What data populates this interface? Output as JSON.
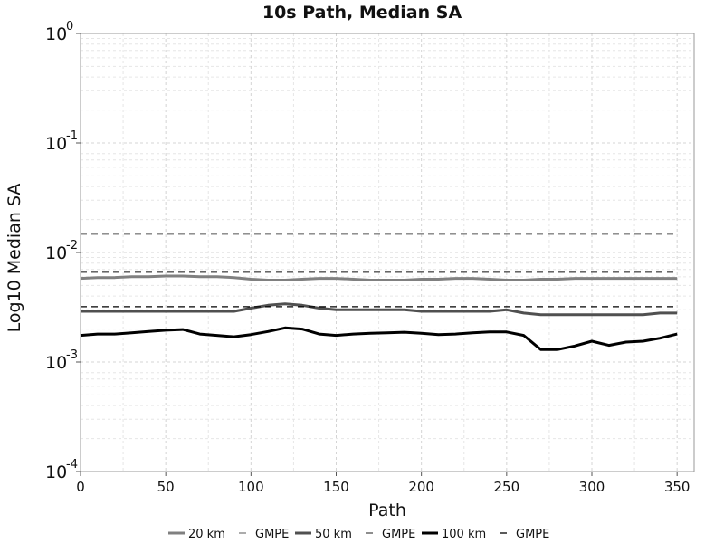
{
  "chart_data": {
    "type": "line",
    "title": "10s Path, Median SA",
    "xlabel": "Path",
    "ylabel": "Log10 Median SA",
    "xlim": [
      0,
      360
    ],
    "ylim": [
      0.0001,
      1
    ],
    "yscale": "log",
    "grid": true,
    "legend_position": "bottom",
    "x_ticks": [
      "0",
      "50",
      "100",
      "150",
      "200",
      "250",
      "300",
      "350"
    ],
    "y_ticks": [
      {
        "base": "10",
        "exp": "-4",
        "value": 0.0001
      },
      {
        "base": "10",
        "exp": "-3",
        "value": 0.001
      },
      {
        "base": "10",
        "exp": "-2",
        "value": 0.01
      },
      {
        "base": "10",
        "exp": "-1",
        "value": 0.1
      },
      {
        "base": "10",
        "exp": "0",
        "value": 1
      }
    ],
    "x": [
      0,
      10,
      20,
      30,
      40,
      50,
      60,
      70,
      80,
      90,
      100,
      110,
      120,
      130,
      140,
      150,
      160,
      170,
      180,
      190,
      200,
      210,
      220,
      230,
      240,
      250,
      260,
      270,
      280,
      290,
      300,
      310,
      320,
      330,
      340,
      350
    ],
    "series": [
      {
        "name": "20 km",
        "color": "#808080",
        "style": "solid",
        "width": 3,
        "values": [
          0.0058,
          0.0059,
          0.0059,
          0.006,
          0.006,
          0.0061,
          0.0061,
          0.006,
          0.006,
          0.0059,
          0.0057,
          0.0056,
          0.0056,
          0.0057,
          0.0058,
          0.0058,
          0.0057,
          0.0056,
          0.0056,
          0.0056,
          0.0057,
          0.0057,
          0.0058,
          0.0058,
          0.0057,
          0.0056,
          0.0056,
          0.0057,
          0.0057,
          0.0058,
          0.0058,
          0.0058,
          0.0058,
          0.0058,
          0.0058,
          0.0058
        ]
      },
      {
        "name": "GMPE",
        "color": "#808080",
        "style": "dashed",
        "width": 1.3,
        "values": [
          0.0147,
          0.0147,
          0.0147,
          0.0147,
          0.0147,
          0.0147,
          0.0147,
          0.0147,
          0.0147,
          0.0147,
          0.0147,
          0.0147,
          0.0147,
          0.0147,
          0.0147,
          0.0147,
          0.0147,
          0.0147,
          0.0147,
          0.0147,
          0.0147,
          0.0147,
          0.0147,
          0.0147,
          0.0147,
          0.0147,
          0.0147,
          0.0147,
          0.0147,
          0.0147,
          0.0147,
          0.0147,
          0.0147,
          0.0147,
          0.0147,
          0.0147
        ]
      },
      {
        "name": "50 km",
        "color": "#505050",
        "style": "solid",
        "width": 3,
        "values": [
          0.0029,
          0.0029,
          0.0029,
          0.0029,
          0.0029,
          0.0029,
          0.0029,
          0.0029,
          0.0029,
          0.0029,
          0.0031,
          0.0033,
          0.0034,
          0.0033,
          0.0031,
          0.003,
          0.003,
          0.003,
          0.003,
          0.003,
          0.0029,
          0.0029,
          0.0029,
          0.0029,
          0.0029,
          0.003,
          0.0028,
          0.0027,
          0.0027,
          0.0027,
          0.0027,
          0.0027,
          0.0027,
          0.0027,
          0.0028,
          0.0028
        ]
      },
      {
        "name": "GMPE",
        "color": "#505050",
        "style": "dashed",
        "width": 1.3,
        "values": [
          0.0066,
          0.0066,
          0.0066,
          0.0066,
          0.0066,
          0.0066,
          0.0066,
          0.0066,
          0.0066,
          0.0066,
          0.0066,
          0.0066,
          0.0066,
          0.0066,
          0.0066,
          0.0066,
          0.0066,
          0.0066,
          0.0066,
          0.0066,
          0.0066,
          0.0066,
          0.0066,
          0.0066,
          0.0066,
          0.0066,
          0.0066,
          0.0066,
          0.0066,
          0.0066,
          0.0066,
          0.0066,
          0.0066,
          0.0066,
          0.0066,
          0.0066
        ]
      },
      {
        "name": "100 km",
        "color": "#000000",
        "style": "solid",
        "width": 3,
        "values": [
          0.00175,
          0.0018,
          0.0018,
          0.00185,
          0.0019,
          0.00195,
          0.00198,
          0.0018,
          0.00175,
          0.0017,
          0.00178,
          0.0019,
          0.00205,
          0.002,
          0.0018,
          0.00175,
          0.0018,
          0.00183,
          0.00185,
          0.00187,
          0.00183,
          0.00178,
          0.0018,
          0.00185,
          0.00188,
          0.00188,
          0.00175,
          0.0013,
          0.0013,
          0.0014,
          0.00155,
          0.00142,
          0.00152,
          0.00155,
          0.00165,
          0.0018
        ]
      },
      {
        "name": "GMPE",
        "color": "#000000",
        "style": "dashed",
        "width": 1.3,
        "values": [
          0.0032,
          0.0032,
          0.0032,
          0.0032,
          0.0032,
          0.0032,
          0.0032,
          0.0032,
          0.0032,
          0.0032,
          0.0032,
          0.0032,
          0.0032,
          0.0032,
          0.0032,
          0.0032,
          0.0032,
          0.0032,
          0.0032,
          0.0032,
          0.0032,
          0.0032,
          0.0032,
          0.0032,
          0.0032,
          0.0032,
          0.0032,
          0.0032,
          0.0032,
          0.0032,
          0.0032,
          0.0032,
          0.0032,
          0.0032,
          0.0032,
          0.0032
        ]
      }
    ]
  }
}
